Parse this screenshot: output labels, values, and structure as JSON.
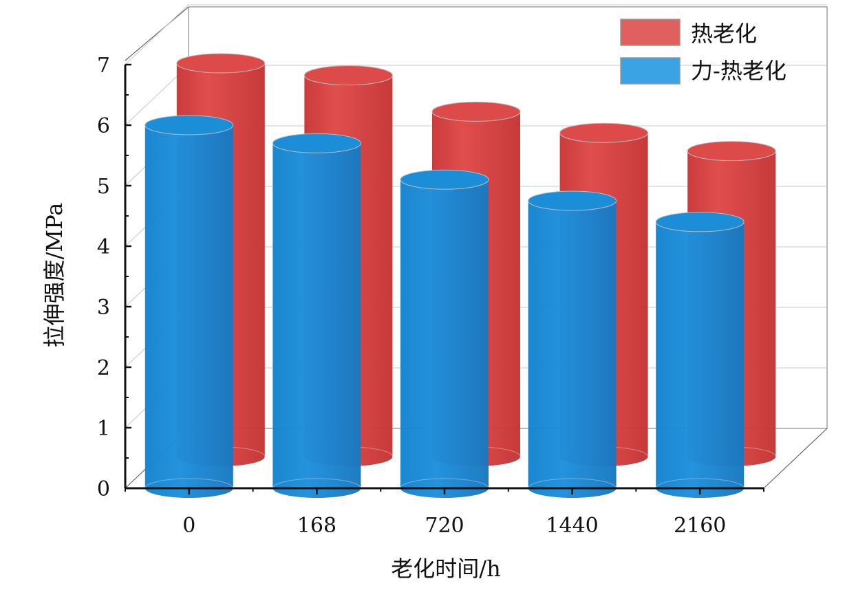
{
  "chart_data": {
    "type": "bar",
    "style": "3d-cylinder",
    "title": "",
    "xlabel": "老化时间/h",
    "ylabel": "拉伸强度/MPa",
    "categories": [
      "0",
      "168",
      "720",
      "1440",
      "2160"
    ],
    "ylim": [
      0,
      7
    ],
    "yticks": [
      0,
      1,
      2,
      3,
      4,
      5,
      6,
      7
    ],
    "grid": true,
    "legend_position": "top-right",
    "series": [
      {
        "name": "热老化",
        "values": [
          6.5,
          6.3,
          5.7,
          5.35,
          5.05
        ],
        "color": "#d94040"
      },
      {
        "name": "力-热老化",
        "values": [
          6.0,
          5.7,
          5.1,
          4.75,
          4.4
        ],
        "color": "#1a8ad8"
      }
    ]
  }
}
